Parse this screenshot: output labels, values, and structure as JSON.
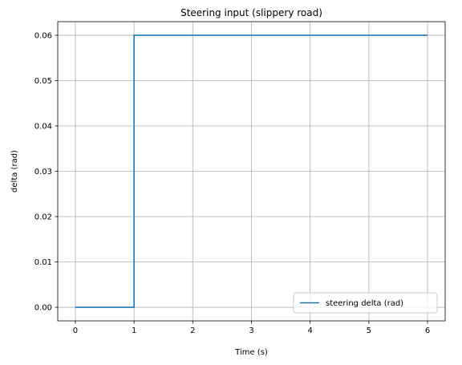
{
  "chart_data": {
    "type": "line",
    "title": "Steering input (slippery road)",
    "xlabel": "Time (s)",
    "ylabel": "delta (rad)",
    "xlim": [
      -0.3,
      6.3
    ],
    "ylim": [
      -0.003,
      0.063
    ],
    "xticks": [
      0,
      1,
      2,
      3,
      4,
      5,
      6
    ],
    "xtick_labels": [
      "0",
      "1",
      "2",
      "3",
      "4",
      "5",
      "6"
    ],
    "yticks": [
      0.0,
      0.01,
      0.02,
      0.03,
      0.04,
      0.05,
      0.06
    ],
    "ytick_labels": [
      "0.00",
      "0.01",
      "0.02",
      "0.03",
      "0.04",
      "0.05",
      "0.06"
    ],
    "grid": true,
    "legend_position": "lower-right",
    "series": [
      {
        "name": "steering delta (rad)",
        "color": "#1f77b4",
        "x": [
          0,
          1.0,
          1.0,
          6.0
        ],
        "y": [
          0.0,
          0.0,
          0.06,
          0.06
        ]
      }
    ]
  }
}
